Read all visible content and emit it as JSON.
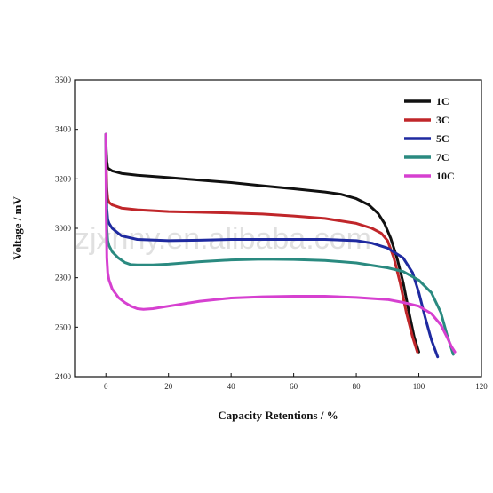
{
  "watermark": "zjxhny.en.alibaba.com",
  "chart_data": {
    "type": "line",
    "title": "",
    "xlabel": "Capacity Retentions / %",
    "ylabel": "Voltage / mV",
    "xlim": [
      -10,
      120
    ],
    "ylim": [
      2400,
      3600
    ],
    "xticks": [
      0,
      20,
      40,
      60,
      80,
      100,
      120
    ],
    "yticks": [
      2400,
      2600,
      2800,
      3000,
      3200,
      3400,
      3600
    ],
    "grid": false,
    "legend_position": "top-right",
    "series": [
      {
        "name": "1C",
        "color": "#111111",
        "x": [
          0,
          0.1,
          0.3,
          0.6,
          1,
          2,
          5,
          10,
          20,
          30,
          40,
          50,
          60,
          70,
          75,
          80,
          84,
          87,
          89,
          91,
          93,
          95,
          97,
          98.5,
          100
        ],
        "y": [
          3380,
          3320,
          3270,
          3245,
          3240,
          3232,
          3222,
          3215,
          3205,
          3195,
          3185,
          3172,
          3160,
          3147,
          3138,
          3120,
          3095,
          3060,
          3020,
          2960,
          2880,
          2780,
          2650,
          2560,
          2500
        ]
      },
      {
        "name": "3C",
        "color": "#c0262a",
        "x": [
          0,
          0.1,
          0.3,
          0.6,
          1,
          2,
          5,
          10,
          20,
          30,
          40,
          50,
          60,
          70,
          80,
          85,
          88,
          90,
          92,
          94,
          96,
          98,
          99.5
        ],
        "y": [
          3380,
          3250,
          3160,
          3120,
          3105,
          3095,
          3082,
          3075,
          3068,
          3065,
          3062,
          3058,
          3050,
          3040,
          3020,
          3000,
          2980,
          2950,
          2880,
          2780,
          2660,
          2560,
          2500
        ]
      },
      {
        "name": "5C",
        "color": "#1f2aa0",
        "x": [
          0,
          0.1,
          0.3,
          0.6,
          1,
          2,
          5,
          10,
          20,
          30,
          40,
          50,
          60,
          70,
          80,
          85,
          90,
          95,
          98,
          100,
          102,
          104,
          106
        ],
        "y": [
          3380,
          3200,
          3080,
          3035,
          3020,
          3000,
          2970,
          2955,
          2950,
          2952,
          2955,
          2955,
          2955,
          2955,
          2950,
          2940,
          2920,
          2880,
          2820,
          2740,
          2640,
          2550,
          2480
        ]
      },
      {
        "name": "7C",
        "color": "#2a8a80",
        "x": [
          0,
          0.1,
          0.3,
          0.6,
          1,
          2,
          4,
          6,
          8,
          10,
          15,
          20,
          30,
          40,
          50,
          60,
          70,
          80,
          90,
          95,
          100,
          104,
          107,
          109,
          111
        ],
        "y": [
          3380,
          3150,
          3000,
          2950,
          2930,
          2905,
          2880,
          2862,
          2853,
          2852,
          2852,
          2855,
          2865,
          2872,
          2875,
          2874,
          2870,
          2860,
          2840,
          2825,
          2790,
          2740,
          2660,
          2570,
          2490
        ]
      },
      {
        "name": "10C",
        "color": "#d640d0",
        "x": [
          0,
          0.1,
          0.3,
          0.6,
          1,
          2,
          4,
          6,
          8,
          10,
          12,
          15,
          20,
          30,
          40,
          50,
          60,
          70,
          80,
          90,
          95,
          100,
          104,
          107,
          109,
          110.5,
          111.5
        ],
        "y": [
          3380,
          3050,
          2880,
          2820,
          2790,
          2755,
          2720,
          2700,
          2685,
          2675,
          2672,
          2675,
          2685,
          2705,
          2718,
          2723,
          2725,
          2725,
          2720,
          2712,
          2700,
          2685,
          2655,
          2610,
          2560,
          2520,
          2500
        ]
      }
    ]
  }
}
